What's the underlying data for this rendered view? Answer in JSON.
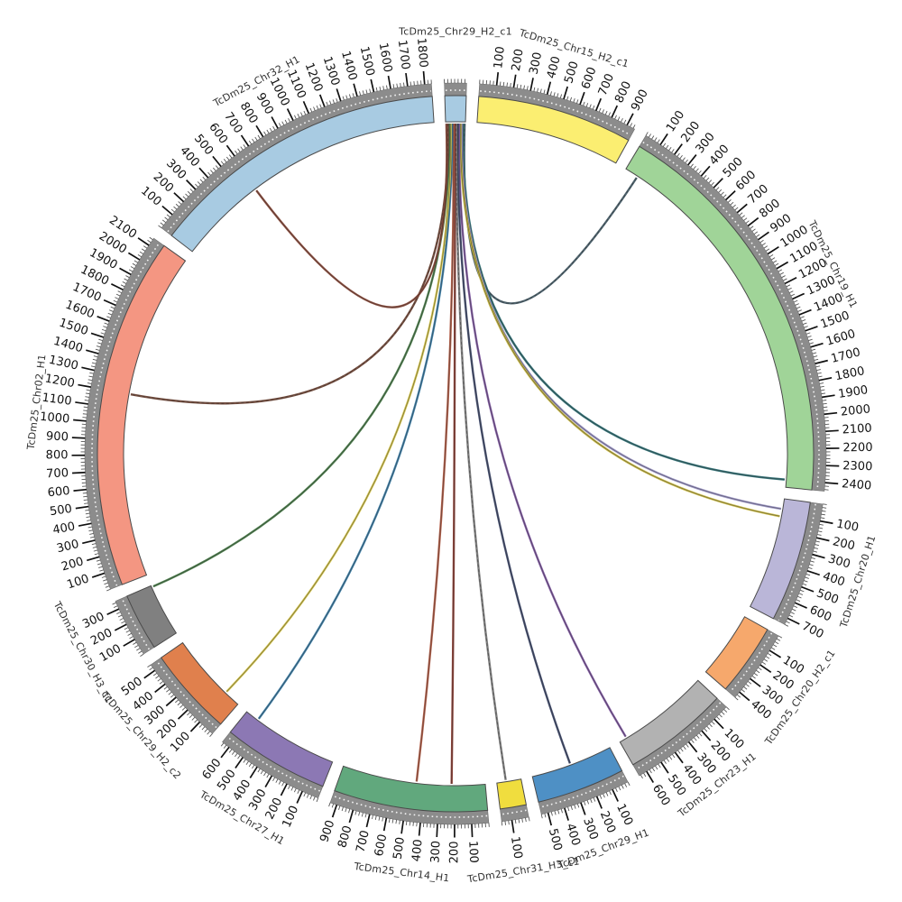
{
  "plot": {
    "kind": "circos-synteny-plot",
    "background": "#ffffff",
    "band_outer_gray": "#8c8c8c",
    "band_dot_color": "#ffffff",
    "tick_color": "#111111",
    "minor_tick_color": "#555555",
    "segment_outline": "#4a4a4a"
  },
  "chart_data": {
    "type": "circos-chord",
    "tick_interval": 100,
    "tick_unit": "(values as printed on axis)",
    "hub_segment": "TcDm25_Chr29_H2_c1",
    "segments": [
      {
        "name": "TcDm25_Chr29_H2_c1",
        "color": "#a8cbe2",
        "length": 130,
        "max_tick": 0,
        "tick_labels": false
      },
      {
        "name": "TcDm25_Chr15_H2_c1",
        "color": "#fbee71",
        "length": 950,
        "max_tick": 900,
        "tick_labels": true
      },
      {
        "name": "TcDm25_Chr19_H1",
        "color": "#a0d498",
        "length": 2450,
        "max_tick": 2400,
        "tick_labels": true
      },
      {
        "name": "TcDm25_Chr20_H1",
        "color": "#bab6d8",
        "length": 740,
        "max_tick": 700,
        "tick_labels": true
      },
      {
        "name": "TcDm25_Chr20_H2_c1",
        "color": "#f6a86c",
        "length": 440,
        "max_tick": 400,
        "tick_labels": true
      },
      {
        "name": "TcDm25_Chr23_H1",
        "color": "#b2b2b2",
        "length": 650,
        "max_tick": 600,
        "tick_labels": true
      },
      {
        "name": "TcDm25_Chr29_H1",
        "color": "#4e90c5",
        "length": 540,
        "max_tick": 500,
        "tick_labels": true
      },
      {
        "name": "TcDm25_Chr31_H3_c1",
        "color": "#f0dd3e",
        "length": 160,
        "max_tick": 100,
        "tick_labels": true
      },
      {
        "name": "TcDm25_Chr14_H1",
        "color": "#61a87d",
        "length": 940,
        "max_tick": 900,
        "tick_labels": true
      },
      {
        "name": "TcDm25_Chr27_H1",
        "color": "#8c78b4",
        "length": 650,
        "max_tick": 600,
        "tick_labels": true
      },
      {
        "name": "TcDm25_Chr29_H2_c2",
        "color": "#e0804d",
        "length": 540,
        "max_tick": 500,
        "tick_labels": true
      },
      {
        "name": "TcDm25_Chr30_H3_c1",
        "color": "#808080",
        "length": 350,
        "max_tick": 300,
        "tick_labels": true
      },
      {
        "name": "TcDm25_Chr02_H1",
        "color": "#f49682",
        "length": 2150,
        "max_tick": 2100,
        "tick_labels": true
      },
      {
        "name": "TcDm25_Chr32_H1",
        "color": "#a8cbe2",
        "length": 1840,
        "max_tick": 1800,
        "tick_labels": true
      }
    ],
    "links": [
      {
        "from": "TcDm25_Chr29_H2_c1",
        "to": "TcDm25_Chr19_H1",
        "pos": 90,
        "color": "#455a64",
        "dashed": true
      },
      {
        "from": "TcDm25_Chr29_H2_c1",
        "to": "TcDm25_Chr19_H1",
        "pos": 2400,
        "color": "#2e6f74",
        "dashed": false
      },
      {
        "from": "TcDm25_Chr29_H2_c1",
        "to": "TcDm25_Chr20_H1",
        "pos": 68,
        "color": "#9a93c4",
        "dashed": false
      },
      {
        "from": "TcDm25_Chr29_H2_c1",
        "to": "TcDm25_Chr20_H1",
        "pos": 117,
        "color": "#c9b942",
        "dashed": false
      },
      {
        "from": "TcDm25_Chr29_H2_c1",
        "to": "TcDm25_Chr23_H1",
        "pos": 600,
        "color": "#7e57a0",
        "dashed": false
      },
      {
        "from": "TcDm25_Chr29_H2_c1",
        "to": "TcDm25_Chr29_H1",
        "pos": 280,
        "color": "#3f4a6b",
        "dashed": false
      },
      {
        "from": "TcDm25_Chr29_H2_c1",
        "to": "TcDm25_Chr31_H3_c1",
        "pos": 100,
        "color": "#757575",
        "dashed": true
      },
      {
        "from": "TcDm25_Chr29_H2_c1",
        "to": "TcDm25_Chr14_H1",
        "pos": 450,
        "color": "#b05a42",
        "dashed": false
      },
      {
        "from": "TcDm25_Chr29_H2_c1",
        "to": "TcDm25_Chr14_H1",
        "pos": 220,
        "color": "#8a3c32",
        "dashed": false
      },
      {
        "from": "TcDm25_Chr29_H2_c1",
        "to": "TcDm25_Chr27_H1",
        "pos": 560,
        "color": "#3a7ca5",
        "dashed": false
      },
      {
        "from": "TcDm25_Chr29_H2_c1",
        "to": "TcDm25_Chr29_H2_c2",
        "pos": 110,
        "color": "#d4c44a",
        "dashed": false
      },
      {
        "from": "TcDm25_Chr29_H2_c1",
        "to": "TcDm25_Chr30_H3_c1",
        "pos": 340,
        "color": "#4a7d4a",
        "dashed": false
      },
      {
        "from": "TcDm25_Chr29_H2_c1",
        "to": "TcDm25_Chr02_H1",
        "pos": 1200,
        "color": "#6b4436",
        "dashed": true
      },
      {
        "from": "TcDm25_Chr29_H2_c1",
        "to": "TcDm25_Chr32_H1",
        "pos": 580,
        "color": "#8a4a3a",
        "dashed": false
      }
    ],
    "layout_hints": {
      "start_angle_deg": 0,
      "gap_deg": 2,
      "direction": "clockwise",
      "tick_label_facing": "radial-nice",
      "segment_label_facing": "tangential-nice"
    }
  }
}
